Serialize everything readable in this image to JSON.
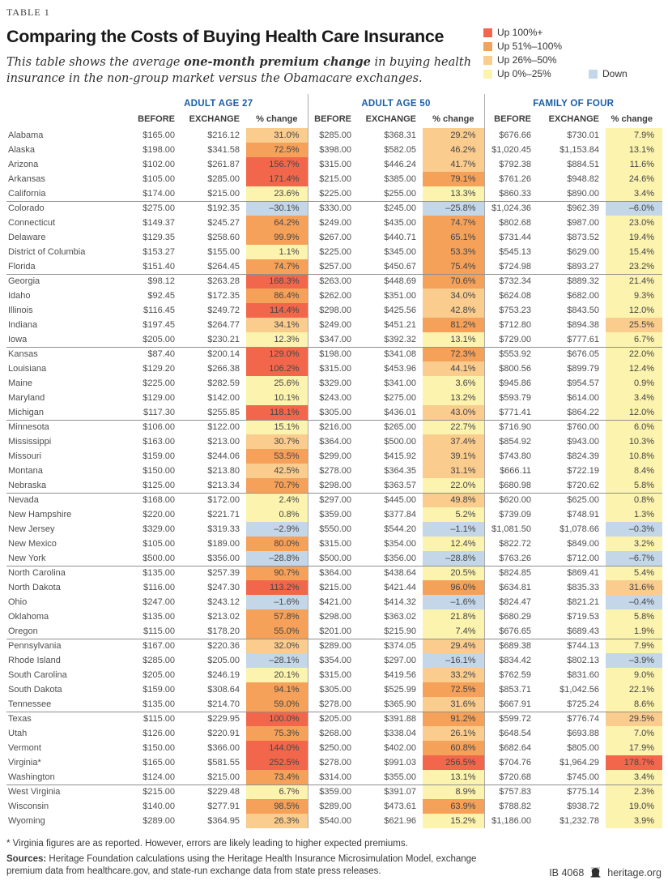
{
  "header": {
    "table_label": "TABLE 1",
    "title": "Comparing the Costs of Buying Health Care Insurance",
    "subtitle": {
      "pre": "This table shows the average ",
      "bold": "one-month premium change",
      "post": " in buying health insurance in the non-group market versus the Obamacare exchanges."
    }
  },
  "legend": {
    "items": [
      {
        "label": "Up 100%+",
        "band": "r"
      },
      {
        "label": "Up 51%–100%",
        "band": "o"
      },
      {
        "label": "Up 26%–50%",
        "band": "lo"
      },
      {
        "label": "Up 0%–25%",
        "band": "y"
      },
      {
        "label": "Down",
        "band": "b"
      }
    ]
  },
  "colors": {
    "accent_blue": "#1A5DA6",
    "bands": {
      "r": "#F2674C",
      "o": "#F5A159",
      "lo": "#FACC8E",
      "y": "#FCF3AE",
      "b": "#C4D7E9"
    }
  },
  "table": {
    "groups": [
      "ADULT AGE 27",
      "ADULT AGE 50",
      "FAMILY OF FOUR"
    ],
    "subheaders": [
      "BEFORE",
      "EXCHANGE",
      "% change"
    ],
    "rows": [
      [
        "Alabama",
        "$165.00",
        "$216.12",
        "31.0%",
        "lo",
        "$285.00",
        "$368.31",
        "29.2%",
        "lo",
        "$676.66",
        "$730.01",
        "7.9%",
        "y"
      ],
      [
        "Alaska",
        "$198.00",
        "$341.58",
        "72.5%",
        "o",
        "$398.00",
        "$582.05",
        "46.2%",
        "lo",
        "$1,020.45",
        "$1,153.84",
        "13.1%",
        "y"
      ],
      [
        "Arizona",
        "$102.00",
        "$261.87",
        "156.7%",
        "r",
        "$315.00",
        "$446.24",
        "41.7%",
        "lo",
        "$792.38",
        "$884.51",
        "11.6%",
        "y"
      ],
      [
        "Arkansas",
        "$105.00",
        "$285.00",
        "171.4%",
        "r",
        "$215.00",
        "$385.00",
        "79.1%",
        "o",
        "$761.26",
        "$948.82",
        "24.6%",
        "y"
      ],
      [
        "California",
        "$174.00",
        "$215.00",
        "23.6%",
        "y",
        "$225.00",
        "$255.00",
        "13.3%",
        "y",
        "$860.33",
        "$890.00",
        "3.4%",
        "y"
      ],
      [
        "Colorado",
        "$275.00",
        "$192.35",
        "–30.1%",
        "b",
        "$330.00",
        "$245.00",
        "–25.8%",
        "b",
        "$1,024.36",
        "$962.39",
        "–6.0%",
        "b"
      ],
      [
        "Connecticut",
        "$149.37",
        "$245.27",
        "64.2%",
        "o",
        "$249.00",
        "$435.00",
        "74.7%",
        "o",
        "$802.68",
        "$987.00",
        "23.0%",
        "y"
      ],
      [
        "Delaware",
        "$129.35",
        "$258.60",
        "99.9%",
        "o",
        "$267.00",
        "$440.71",
        "65.1%",
        "o",
        "$731.44",
        "$873.52",
        "19.4%",
        "y"
      ],
      [
        "District of Columbia",
        "$153.27",
        "$155.00",
        "1.1%",
        "y",
        "$225.00",
        "$345.00",
        "53.3%",
        "o",
        "$545.13",
        "$629.00",
        "15.4%",
        "y"
      ],
      [
        "Florida",
        "$151.40",
        "$264.45",
        "74.7%",
        "o",
        "$257.00",
        "$450.67",
        "75.4%",
        "o",
        "$724.98",
        "$893.27",
        "23.2%",
        "y"
      ],
      [
        "Georgia",
        "$98.12",
        "$263.28",
        "168.3%",
        "r",
        "$263.00",
        "$448.69",
        "70.6%",
        "o",
        "$732.34",
        "$889.32",
        "21.4%",
        "y"
      ],
      [
        "Idaho",
        "$92.45",
        "$172.35",
        "86.4%",
        "o",
        "$262.00",
        "$351.00",
        "34.0%",
        "lo",
        "$624.08",
        "$682.00",
        "9.3%",
        "y"
      ],
      [
        "Illinois",
        "$116.45",
        "$249.72",
        "114.4%",
        "r",
        "$298.00",
        "$425.56",
        "42.8%",
        "lo",
        "$753.23",
        "$843.50",
        "12.0%",
        "y"
      ],
      [
        "Indiana",
        "$197.45",
        "$264.77",
        "34.1%",
        "lo",
        "$249.00",
        "$451.21",
        "81.2%",
        "o",
        "$712.80",
        "$894.38",
        "25.5%",
        "lo"
      ],
      [
        "Iowa",
        "$205.00",
        "$230.21",
        "12.3%",
        "y",
        "$347.00",
        "$392.32",
        "13.1%",
        "y",
        "$729.00",
        "$777.61",
        "6.7%",
        "y"
      ],
      [
        "Kansas",
        "$87.40",
        "$200.14",
        "129.0%",
        "r",
        "$198.00",
        "$341.08",
        "72.3%",
        "o",
        "$553.92",
        "$676.05",
        "22.0%",
        "y"
      ],
      [
        "Louisiana",
        "$129.20",
        "$266.38",
        "106.2%",
        "r",
        "$315.00",
        "$453.96",
        "44.1%",
        "lo",
        "$800.56",
        "$899.79",
        "12.4%",
        "y"
      ],
      [
        "Maine",
        "$225.00",
        "$282.59",
        "25.6%",
        "y",
        "$329.00",
        "$341.00",
        "3.6%",
        "y",
        "$945.86",
        "$954.57",
        "0.9%",
        "y"
      ],
      [
        "Maryland",
        "$129.00",
        "$142.00",
        "10.1%",
        "y",
        "$243.00",
        "$275.00",
        "13.2%",
        "y",
        "$593.79",
        "$614.00",
        "3.4%",
        "y"
      ],
      [
        "Michigan",
        "$117.30",
        "$255.85",
        "118.1%",
        "r",
        "$305.00",
        "$436.01",
        "43.0%",
        "lo",
        "$771.41",
        "$864.22",
        "12.0%",
        "y"
      ],
      [
        "Minnesota",
        "$106.00",
        "$122.00",
        "15.1%",
        "y",
        "$216.00",
        "$265.00",
        "22.7%",
        "y",
        "$716.90",
        "$760.00",
        "6.0%",
        "y"
      ],
      [
        "Mississippi",
        "$163.00",
        "$213.00",
        "30.7%",
        "lo",
        "$364.00",
        "$500.00",
        "37.4%",
        "lo",
        "$854.92",
        "$943.00",
        "10.3%",
        "y"
      ],
      [
        "Missouri",
        "$159.00",
        "$244.06",
        "53.5%",
        "o",
        "$299.00",
        "$415.92",
        "39.1%",
        "lo",
        "$743.80",
        "$824.39",
        "10.8%",
        "y"
      ],
      [
        "Montana",
        "$150.00",
        "$213.80",
        "42.5%",
        "lo",
        "$278.00",
        "$364.35",
        "31.1%",
        "lo",
        "$666.11",
        "$722.19",
        "8.4%",
        "y"
      ],
      [
        "Nebraska",
        "$125.00",
        "$213.34",
        "70.7%",
        "o",
        "$298.00",
        "$363.57",
        "22.0%",
        "y",
        "$680.98",
        "$720.62",
        "5.8%",
        "y"
      ],
      [
        "Nevada",
        "$168.00",
        "$172.00",
        "2.4%",
        "y",
        "$297.00",
        "$445.00",
        "49.8%",
        "lo",
        "$620.00",
        "$625.00",
        "0.8%",
        "y"
      ],
      [
        "New Hampshire",
        "$220.00",
        "$221.71",
        "0.8%",
        "y",
        "$359.00",
        "$377.84",
        "5.2%",
        "y",
        "$739.09",
        "$748.91",
        "1.3%",
        "y"
      ],
      [
        "New Jersey",
        "$329.00",
        "$319.33",
        "–2.9%",
        "b",
        "$550.00",
        "$544.20",
        "–1.1%",
        "b",
        "$1,081.50",
        "$1,078.66",
        "–0.3%",
        "b"
      ],
      [
        "New Mexico",
        "$105.00",
        "$189.00",
        "80.0%",
        "o",
        "$315.00",
        "$354.00",
        "12.4%",
        "y",
        "$822.72",
        "$849.00",
        "3.2%",
        "y"
      ],
      [
        "New York",
        "$500.00",
        "$356.00",
        "–28.8%",
        "b",
        "$500.00",
        "$356.00",
        "–28.8%",
        "b",
        "$763.26",
        "$712.00",
        "–6.7%",
        "b"
      ],
      [
        "North Carolina",
        "$135.00",
        "$257.39",
        "90.7%",
        "o",
        "$364.00",
        "$438.64",
        "20.5%",
        "y",
        "$824.85",
        "$869.41",
        "5.4%",
        "y"
      ],
      [
        "North Dakota",
        "$116.00",
        "$247.30",
        "113.2%",
        "r",
        "$215.00",
        "$421.44",
        "96.0%",
        "o",
        "$634.81",
        "$835.33",
        "31.6%",
        "lo"
      ],
      [
        "Ohio",
        "$247.00",
        "$243.12",
        "–1.6%",
        "b",
        "$421.00",
        "$414.32",
        "–1.6%",
        "b",
        "$824.47",
        "$821.21",
        "–0.4%",
        "b"
      ],
      [
        "Oklahoma",
        "$135.00",
        "$213.02",
        "57.8%",
        "o",
        "$298.00",
        "$363.02",
        "21.8%",
        "y",
        "$680.29",
        "$719.53",
        "5.8%",
        "y"
      ],
      [
        "Oregon",
        "$115.00",
        "$178.20",
        "55.0%",
        "o",
        "$201.00",
        "$215.90",
        "7.4%",
        "y",
        "$676.65",
        "$689.43",
        "1.9%",
        "y"
      ],
      [
        "Pennsylvania",
        "$167.00",
        "$220.36",
        "32.0%",
        "lo",
        "$289.00",
        "$374.05",
        "29.4%",
        "lo",
        "$689.38",
        "$744.13",
        "7.9%",
        "y"
      ],
      [
        "Rhode Island",
        "$285.00",
        "$205.00",
        "–28.1%",
        "b",
        "$354.00",
        "$297.00",
        "–16.1%",
        "b",
        "$834.42",
        "$802.13",
        "–3.9%",
        "b"
      ],
      [
        "South Carolina",
        "$205.00",
        "$246.19",
        "20.1%",
        "y",
        "$315.00",
        "$419.56",
        "33.2%",
        "lo",
        "$762.59",
        "$831.60",
        "9.0%",
        "y"
      ],
      [
        "South Dakota",
        "$159.00",
        "$308.64",
        "94.1%",
        "o",
        "$305.00",
        "$525.99",
        "72.5%",
        "o",
        "$853.71",
        "$1,042.56",
        "22.1%",
        "y"
      ],
      [
        "Tennessee",
        "$135.00",
        "$214.70",
        "59.0%",
        "o",
        "$278.00",
        "$365.90",
        "31.6%",
        "lo",
        "$667.91",
        "$725.24",
        "8.6%",
        "y"
      ],
      [
        "Texas",
        "$115.00",
        "$229.95",
        "100.0%",
        "r",
        "$205.00",
        "$391.88",
        "91.2%",
        "o",
        "$599.72",
        "$776.74",
        "29.5%",
        "lo"
      ],
      [
        "Utah",
        "$126.00",
        "$220.91",
        "75.3%",
        "o",
        "$268.00",
        "$338.04",
        "26.1%",
        "lo",
        "$648.54",
        "$693.88",
        "7.0%",
        "y"
      ],
      [
        "Vermont",
        "$150.00",
        "$366.00",
        "144.0%",
        "r",
        "$250.00",
        "$402.00",
        "60.8%",
        "o",
        "$682.64",
        "$805.00",
        "17.9%",
        "y"
      ],
      [
        "Virginia*",
        "$165.00",
        "$581.55",
        "252.5%",
        "r",
        "$278.00",
        "$991.03",
        "256.5%",
        "r",
        "$704.76",
        "$1,964.29",
        "178.7%",
        "r"
      ],
      [
        "Washington",
        "$124.00",
        "$215.00",
        "73.4%",
        "o",
        "$314.00",
        "$355.00",
        "13.1%",
        "y",
        "$720.68",
        "$745.00",
        "3.4%",
        "y"
      ],
      [
        "West Virginia",
        "$215.00",
        "$229.48",
        "6.7%",
        "y",
        "$359.00",
        "$391.07",
        "8.9%",
        "y",
        "$757.83",
        "$775.14",
        "2.3%",
        "y"
      ],
      [
        "Wisconsin",
        "$140.00",
        "$277.91",
        "98.5%",
        "o",
        "$289.00",
        "$473.61",
        "63.9%",
        "o",
        "$788.82",
        "$938.72",
        "19.0%",
        "y"
      ],
      [
        "Wyoming",
        "$289.00",
        "$364.95",
        "26.3%",
        "lo",
        "$540.00",
        "$621.96",
        "15.2%",
        "y",
        "$1,186.00",
        "$1,232.78",
        "3.9%",
        "y"
      ]
    ]
  },
  "footer": {
    "footnote": "* Virginia figures are as reported. However, errors are likely leading to higher expected premiums.",
    "sources_label": "Sources:",
    "sources_text": " Heritage Foundation calculations using the Heritage Health Insurance Microsimulation Model, exchange premium data from healthcare.gov, and state-run exchange data from state press releases.",
    "report_id": "IB 4068",
    "site": "heritage.org"
  }
}
